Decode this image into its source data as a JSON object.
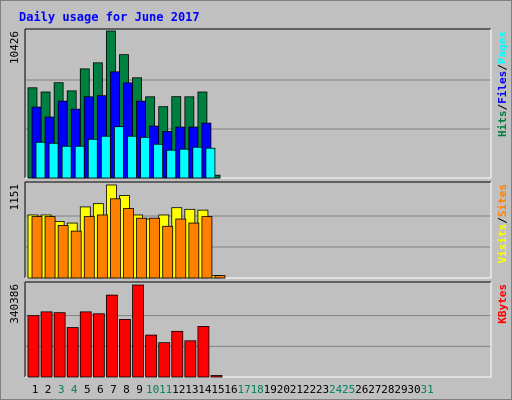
{
  "colors": {
    "background": "#c0c0c0",
    "pages": "#00ffff",
    "files": "#0000ff",
    "hits": "#008040",
    "sites": "#ff8000",
    "visits": "#ffff00",
    "kbytes": "#ff0000",
    "title": "#0000ff",
    "day_weekday": "#000000",
    "day_weekend": "#00805c"
  },
  "chart_data": {
    "type": "bar",
    "title": "Daily usage for June 2017",
    "categories": [
      "1",
      "2",
      "3",
      "4",
      "5",
      "6",
      "7",
      "8",
      "9",
      "10",
      "11",
      "12",
      "13",
      "14",
      "15",
      "16",
      "17",
      "18",
      "19",
      "20",
      "21",
      "22",
      "23",
      "24",
      "25",
      "26",
      "27",
      "28",
      "29",
      "30",
      "31"
    ],
    "weekend_days": [
      "3",
      "4",
      "10",
      "11",
      "17",
      "18",
      "24",
      "25",
      "31"
    ],
    "grid": true,
    "panels": [
      {
        "max_label": "10426",
        "ylim": [
          0,
          10426
        ],
        "axis_label_parts": [
          {
            "text": "Hits",
            "color_key": "hits"
          },
          {
            "text": "/",
            "color_key": "slash"
          },
          {
            "text": "Files",
            "color_key": "files"
          },
          {
            "text": "/",
            "color_key": "slash"
          },
          {
            "text": "Pages",
            "color_key": "pages"
          }
        ],
        "series": [
          {
            "name": "Hits",
            "color_key": "hits",
            "values": [
              6400,
              6100,
              6760,
              6180,
              7740,
              8170,
              10426,
              8750,
              7110,
              5760,
              5060,
              5770,
              5760,
              6100,
              200,
              0,
              0,
              0,
              0,
              0,
              0,
              0,
              0,
              0,
              0,
              0,
              0,
              0,
              0,
              0,
              0
            ]
          },
          {
            "name": "Files",
            "color_key": "files",
            "values": [
              5030,
              4320,
              5450,
              4880,
              5760,
              5840,
              7530,
              6750,
              5450,
              3680,
              3300,
              3610,
              3610,
              3890,
              0,
              0,
              0,
              0,
              0,
              0,
              0,
              0,
              0,
              0,
              0,
              0,
              0,
              0,
              0,
              0,
              0
            ]
          },
          {
            "name": "Pages",
            "color_key": "pages",
            "values": [
              2530,
              2460,
              2250,
              2250,
              2740,
              2960,
              3640,
              2960,
              2880,
              2390,
              1970,
              2040,
              2180,
              2110,
              0,
              0,
              0,
              0,
              0,
              0,
              0,
              0,
              0,
              0,
              0,
              0,
              0,
              0,
              0,
              0,
              0
            ]
          }
        ]
      },
      {
        "max_label": "1151",
        "ylim": [
          0,
          1151
        ],
        "axis_label_parts": [
          {
            "text": "Visits",
            "color_key": "visits"
          },
          {
            "text": "/",
            "color_key": "slash"
          },
          {
            "text": "Sites",
            "color_key": "sites"
          }
        ],
        "series": [
          {
            "name": "Visits",
            "color_key": "visits",
            "values": [
              780,
              780,
              700,
              680,
              880,
              920,
              1151,
              1020,
              780,
              730,
              780,
              870,
              850,
              840,
              30,
              0,
              0,
              0,
              0,
              0,
              0,
              0,
              0,
              0,
              0,
              0,
              0,
              0,
              0,
              0,
              0
            ]
          },
          {
            "name": "Sites",
            "color_key": "sites",
            "values": [
              760,
              760,
              650,
              580,
              760,
              780,
              980,
              860,
              740,
              740,
              640,
              730,
              680,
              760,
              30,
              0,
              0,
              0,
              0,
              0,
              0,
              0,
              0,
              0,
              0,
              0,
              0,
              0,
              0,
              0,
              0
            ]
          }
        ]
      },
      {
        "max_label": "340386",
        "ylim": [
          0,
          340386
        ],
        "axis_label_parts": [
          {
            "text": "KBytes",
            "color_key": "kbytes"
          }
        ],
        "series": [
          {
            "name": "KBytes",
            "color_key": "kbytes",
            "values": [
              227000,
              241000,
              238000,
              183000,
              241000,
              234000,
              303000,
              213000,
              340386,
              155000,
              127000,
              169000,
              134000,
              187000,
              2000,
              0,
              0,
              0,
              0,
              0,
              0,
              0,
              0,
              0,
              0,
              0,
              0,
              0,
              0,
              0,
              0
            ]
          }
        ]
      }
    ]
  }
}
